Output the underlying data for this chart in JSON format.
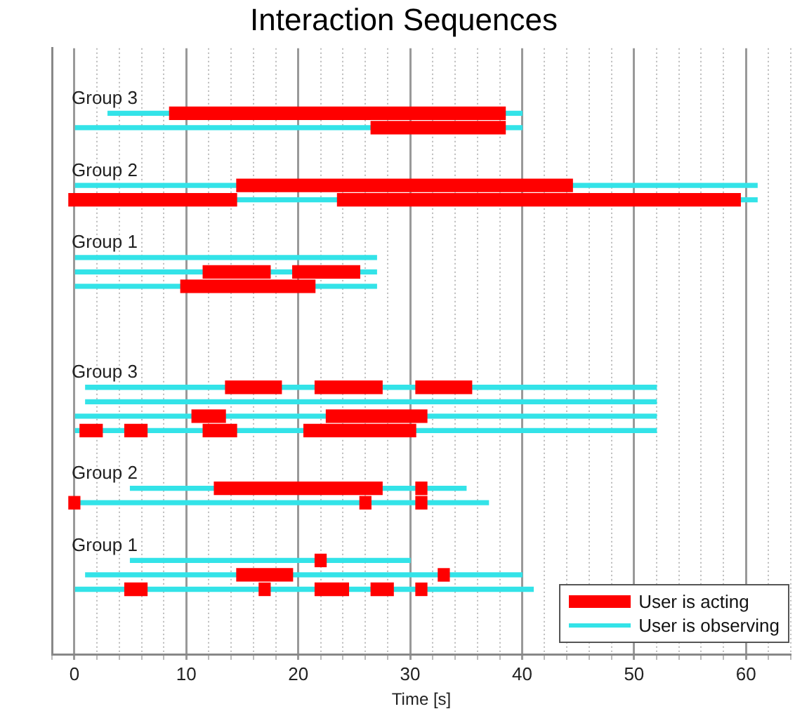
{
  "chart_data": {
    "type": "bar",
    "orientation": "horizontal",
    "title": "Interaction Sequences",
    "xlabel": "Time [s]",
    "categories": [
      null,
      null,
      null,
      "Group 3",
      null,
      null,
      null,
      null,
      "Group 2",
      null,
      null,
      null,
      null,
      "Group 1",
      null,
      null,
      null,
      null,
      null,
      null,
      null,
      null,
      "Group 3",
      null,
      null,
      null,
      null,
      null,
      null,
      "Group 2",
      null,
      null,
      null,
      null,
      "Group 1",
      null,
      null,
      null,
      null,
      null,
      null,
      null
    ],
    "series": [
      {
        "name": "User is acting",
        "color": "#ff0000",
        "base": [
          null,
          null,
          null,
          null,
          8.5,
          26.5,
          null,
          null,
          null,
          14.5,
          -0.5,
          null,
          null,
          null,
          null,
          11.5,
          9.5,
          null,
          null,
          null,
          null,
          null,
          null,
          13.5,
          null,
          10.5,
          0.5,
          null,
          null,
          null,
          12.5,
          -0.5,
          null,
          null,
          null,
          21.5,
          14.5,
          4.5,
          null,
          null,
          null,
          null
        ],
        "values": [
          null,
          null,
          null,
          null,
          30,
          12,
          null,
          null,
          null,
          30,
          15,
          null,
          null,
          null,
          null,
          6,
          12,
          null,
          null,
          null,
          null,
          null,
          null,
          5,
          null,
          3,
          2,
          null,
          null,
          null,
          15,
          1,
          null,
          null,
          null,
          1,
          5,
          2,
          null,
          null,
          null,
          null
        ]
      },
      {
        "color": "#ff0000",
        "base": [
          null,
          null,
          null,
          null,
          null,
          null,
          null,
          null,
          null,
          null,
          23.5,
          null,
          null,
          null,
          null,
          19.5,
          null,
          null,
          null,
          null,
          null,
          null,
          null,
          21.5,
          null,
          22.5,
          4.5,
          null,
          null,
          null,
          30.5,
          25.5,
          null,
          null,
          null,
          null,
          32.5,
          16.5,
          null,
          null,
          null,
          null
        ],
        "values": [
          null,
          null,
          null,
          null,
          null,
          null,
          null,
          null,
          null,
          null,
          36,
          null,
          null,
          null,
          null,
          6,
          null,
          null,
          null,
          null,
          null,
          null,
          null,
          6,
          null,
          9,
          2,
          null,
          null,
          null,
          1,
          1,
          null,
          null,
          null,
          null,
          1,
          1,
          null,
          null,
          null,
          null
        ]
      },
      {
        "color": "#ff0000",
        "base": [
          null,
          null,
          null,
          null,
          null,
          null,
          null,
          null,
          null,
          null,
          null,
          null,
          null,
          null,
          null,
          null,
          null,
          null,
          null,
          null,
          null,
          null,
          null,
          30.5,
          null,
          null,
          11.5,
          null,
          null,
          null,
          null,
          30.5,
          null,
          null,
          null,
          null,
          null,
          21.5,
          null,
          null,
          null,
          null
        ],
        "values": [
          null,
          null,
          null,
          null,
          null,
          null,
          null,
          null,
          null,
          null,
          null,
          null,
          null,
          null,
          null,
          null,
          null,
          null,
          null,
          null,
          null,
          null,
          null,
          5,
          null,
          null,
          3,
          null,
          null,
          null,
          null,
          1,
          null,
          null,
          null,
          null,
          null,
          3,
          null,
          null,
          null,
          null
        ]
      },
      {
        "color": "#ff0000",
        "base": [
          null,
          null,
          null,
          null,
          null,
          null,
          null,
          null,
          null,
          null,
          null,
          null,
          null,
          null,
          null,
          null,
          null,
          null,
          null,
          null,
          null,
          null,
          null,
          null,
          null,
          null,
          20.5,
          null,
          null,
          null,
          null,
          null,
          null,
          null,
          null,
          null,
          null,
          26.5,
          null,
          null,
          null,
          null
        ],
        "values": [
          null,
          null,
          null,
          null,
          null,
          null,
          null,
          null,
          null,
          null,
          null,
          null,
          null,
          null,
          null,
          null,
          null,
          null,
          null,
          null,
          null,
          null,
          null,
          null,
          null,
          null,
          10,
          null,
          null,
          null,
          null,
          null,
          null,
          null,
          null,
          null,
          null,
          2,
          null,
          null,
          null,
          null
        ]
      },
      {
        "color": "#ff0000",
        "base": [
          null,
          null,
          null,
          null,
          null,
          null,
          null,
          null,
          null,
          null,
          null,
          null,
          null,
          null,
          null,
          null,
          null,
          null,
          null,
          null,
          null,
          null,
          null,
          null,
          null,
          null,
          null,
          null,
          null,
          null,
          null,
          null,
          null,
          null,
          null,
          null,
          null,
          30.5,
          null,
          null,
          null,
          null
        ],
        "values": [
          null,
          null,
          null,
          null,
          null,
          null,
          null,
          null,
          null,
          null,
          null,
          null,
          null,
          null,
          null,
          null,
          null,
          null,
          null,
          null,
          null,
          null,
          null,
          null,
          null,
          null,
          null,
          null,
          null,
          null,
          null,
          null,
          null,
          null,
          null,
          null,
          null,
          1,
          null,
          null,
          null,
          null
        ]
      },
      {
        "name": "User is observing",
        "color": "#33e3e8",
        "base": [
          null,
          null,
          null,
          null,
          3,
          0,
          null,
          null,
          null,
          0,
          0,
          null,
          null,
          null,
          0,
          0,
          0,
          null,
          null,
          null,
          null,
          null,
          null,
          1,
          1,
          0,
          0,
          null,
          null,
          null,
          5,
          0,
          null,
          null,
          null,
          5,
          1,
          0,
          null,
          null,
          null,
          null
        ],
        "values": [
          null,
          null,
          null,
          null,
          37,
          40,
          null,
          null,
          null,
          61,
          61,
          null,
          null,
          null,
          27,
          27,
          27,
          null,
          null,
          null,
          null,
          null,
          null,
          51,
          51,
          52,
          52,
          null,
          null,
          null,
          30,
          37,
          null,
          null,
          null,
          25,
          39,
          41,
          null,
          null,
          null,
          null
        ]
      }
    ],
    "xlim": [
      -2,
      64
    ],
    "xticks": [
      {
        "value": -2,
        "label": null
      },
      0,
      {
        "value": 2,
        "label": null
      },
      {
        "value": 4,
        "label": null
      },
      {
        "value": 6,
        "label": null
      },
      {
        "value": 8,
        "label": null
      },
      10,
      {
        "value": 12,
        "label": null
      },
      {
        "value": 14,
        "label": null
      },
      {
        "value": 16,
        "label": null
      },
      {
        "value": 18,
        "label": null
      },
      20,
      {
        "value": 22,
        "label": null
      },
      {
        "value": 24,
        "label": null
      },
      {
        "value": 26,
        "label": null
      },
      {
        "value": 28,
        "label": null
      },
      30,
      {
        "value": 32,
        "label": null
      },
      {
        "value": 34,
        "label": null
      },
      {
        "value": 36,
        "label": null
      },
      {
        "value": 38,
        "label": null
      },
      40,
      {
        "value": 42,
        "label": null
      },
      {
        "value": 44,
        "label": null
      },
      {
        "value": 46,
        "label": null
      },
      {
        "value": 48,
        "label": null
      },
      50,
      {
        "value": 52,
        "label": null
      },
      {
        "value": 54,
        "label": null
      },
      {
        "value": 56,
        "label": null
      },
      {
        "value": 58,
        "label": null
      },
      60,
      {
        "value": 62,
        "label": null
      },
      {
        "value": 64,
        "label": null
      }
    ],
    "grid": "x",
    "legend": "bottom right"
  }
}
